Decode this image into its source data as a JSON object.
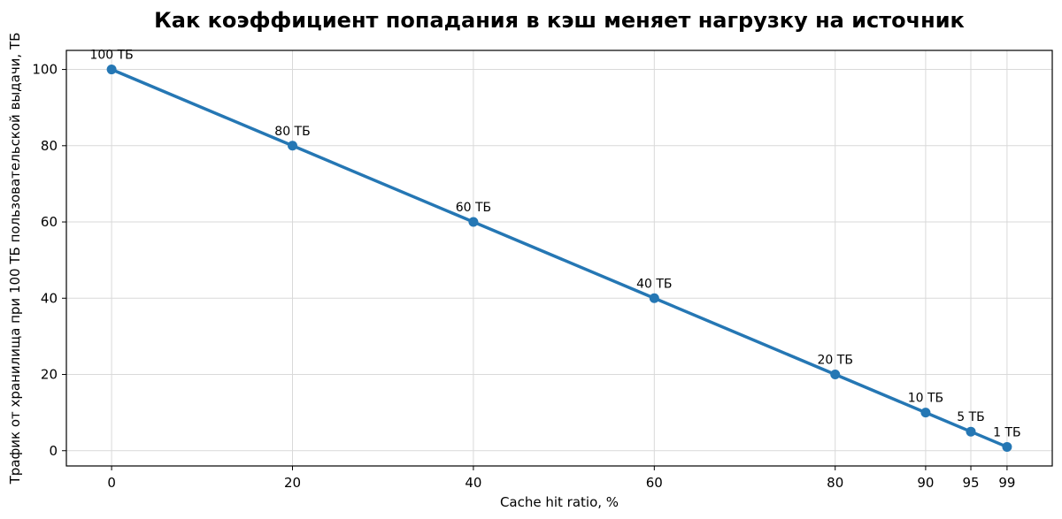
{
  "chart_data": {
    "type": "line",
    "title": "Как коэффициент попадания в кэш меняет нагрузку на источник",
    "xlabel": "Cache hit ratio, %",
    "ylabel": "Трафик от хранилища при 100 ТБ пользовательской выдачи, ТБ",
    "x": [
      0,
      20,
      40,
      60,
      80,
      90,
      95,
      99
    ],
    "x_ticks": [
      0,
      20,
      40,
      60,
      80,
      90,
      95,
      99
    ],
    "y_ticks": [
      0,
      20,
      40,
      60,
      80,
      100
    ],
    "xlim": [
      -5,
      104
    ],
    "ylim": [
      -4,
      105
    ],
    "series": [
      {
        "values": [
          100,
          80,
          60,
          40,
          20,
          10,
          5,
          1
        ],
        "labels": [
          "100 ТБ",
          "80 ТБ",
          "60 ТБ",
          "40 ТБ",
          "20 ТБ",
          "10 ТБ",
          "5 ТБ",
          "1 ТБ"
        ],
        "color": "#2577b4",
        "marker": "circle"
      }
    ],
    "grid": true,
    "legend": "none"
  }
}
